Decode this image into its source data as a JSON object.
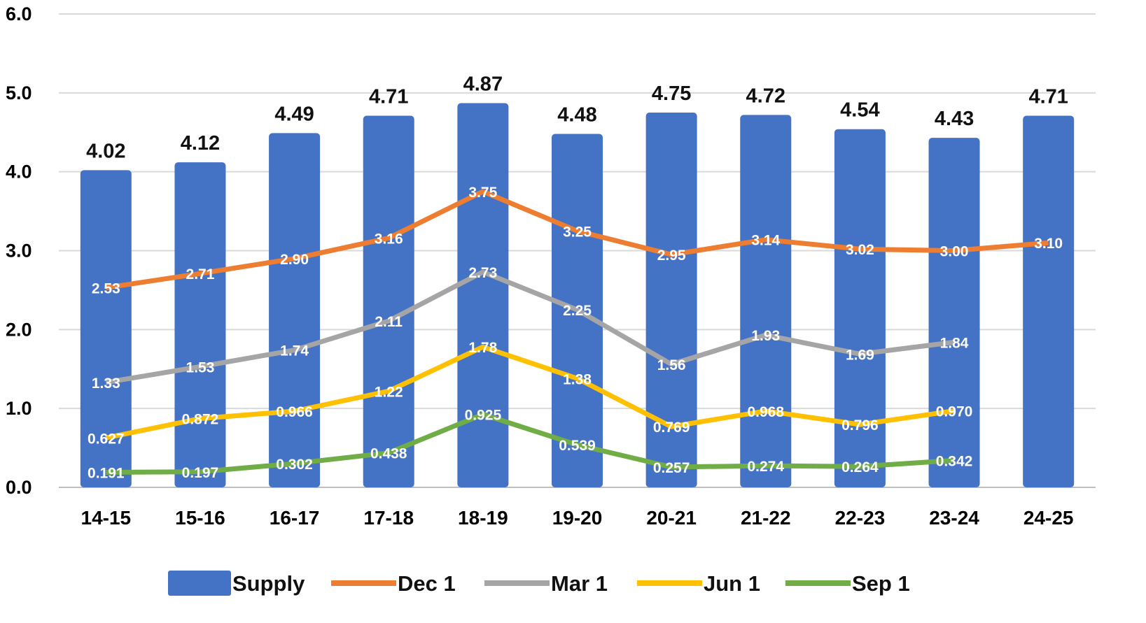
{
  "chart_data": {
    "type": "bar",
    "categories": [
      "14-15",
      "15-16",
      "16-17",
      "17-18",
      "18-19",
      "19-20",
      "20-21",
      "21-22",
      "22-23",
      "23-24",
      "24-25"
    ],
    "ylim": [
      0,
      6
    ],
    "yticks": [
      "0.0",
      "1.0",
      "2.0",
      "3.0",
      "4.0",
      "5.0",
      "6.0"
    ],
    "grid": true,
    "legend_position": "bottom",
    "series": [
      {
        "name": "Supply",
        "type": "bar",
        "color": "#4472C4",
        "values": [
          4.02,
          4.12,
          4.49,
          4.71,
          4.87,
          4.48,
          4.75,
          4.72,
          4.54,
          4.43,
          4.71
        ],
        "labels": [
          "4.02",
          "4.12",
          "4.49",
          "4.71",
          "4.87",
          "4.48",
          "4.75",
          "4.72",
          "4.54",
          "4.43",
          "4.71"
        ]
      },
      {
        "name": "Dec 1",
        "type": "line",
        "color": "#ED7D31",
        "values": [
          2.53,
          2.71,
          2.9,
          3.16,
          3.75,
          3.25,
          2.95,
          3.14,
          3.02,
          3.0,
          3.1
        ],
        "labels": [
          "2.53",
          "2.71",
          "2.90",
          "3.16",
          "3.75",
          "3.25",
          "2.95",
          "3.14",
          "3.02",
          "3.00",
          "3.10"
        ]
      },
      {
        "name": "Mar 1",
        "type": "line",
        "color": "#A5A5A5",
        "values": [
          1.33,
          1.53,
          1.74,
          2.11,
          2.73,
          2.25,
          1.56,
          1.93,
          1.69,
          1.84,
          null
        ],
        "labels": [
          "1.33",
          "1.53",
          "1.74",
          "2.11",
          "2.73",
          "2.25",
          "1.56",
          "1.93",
          "1.69",
          "1.84",
          null
        ]
      },
      {
        "name": "Jun 1",
        "type": "line",
        "color": "#FFC000",
        "values": [
          0.627,
          0.872,
          0.966,
          1.22,
          1.78,
          1.38,
          0.769,
          0.968,
          0.796,
          0.97,
          null
        ],
        "labels": [
          "0.627",
          "0.872",
          "0.966",
          "1.22",
          "1.78",
          "1.38",
          "0.769",
          "0.968",
          "0.796",
          "0.970",
          null
        ]
      },
      {
        "name": "Sep 1",
        "type": "line",
        "color": "#70AD47",
        "values": [
          0.191,
          0.197,
          0.302,
          0.438,
          0.925,
          0.539,
          0.257,
          0.274,
          0.264,
          0.342,
          null
        ],
        "labels": [
          "0.191",
          "0.197",
          "0.302",
          "0.438",
          "0.925",
          "0.539",
          "0.257",
          "0.274",
          "0.264",
          "0.342",
          null
        ]
      }
    ]
  }
}
